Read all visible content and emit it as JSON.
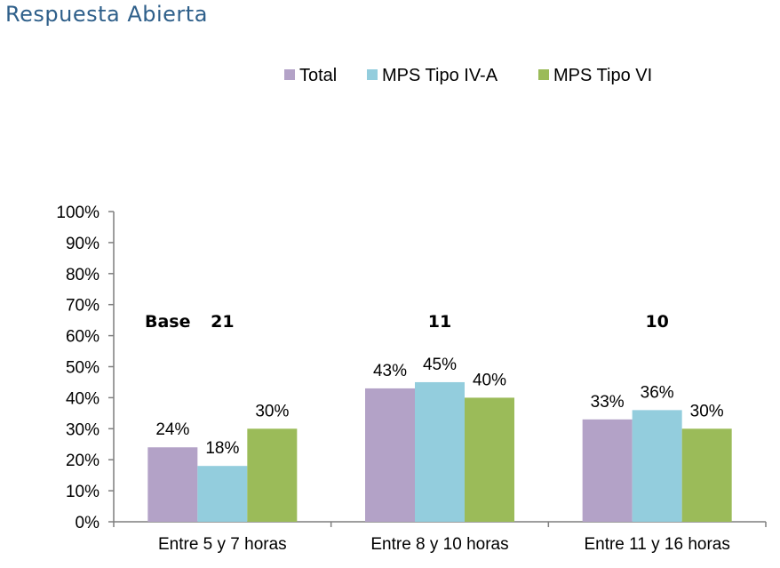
{
  "page_title": "Respuesta Abierta",
  "chart_data": {
    "type": "bar",
    "categories": [
      "Entre 5 y 7 horas",
      "Entre 8 y 10 horas",
      "Entre 11 y 16 horas"
    ],
    "series": [
      {
        "name": "Total",
        "color": "#b3a2c7",
        "values": [
          24,
          43,
          33
        ],
        "labels": [
          "24%",
          "43%",
          "33%"
        ]
      },
      {
        "name": "MPS Tipo IV-A",
        "color": "#93cddd",
        "values": [
          18,
          45,
          36
        ],
        "labels": [
          "18%",
          "45%",
          "36%"
        ]
      },
      {
        "name": "MPS Tipo VI",
        "color": "#9bbb59",
        "values": [
          30,
          40,
          30
        ],
        "labels": [
          "30%",
          "40%",
          "30%"
        ]
      }
    ],
    "yticks": [
      "0%",
      "10%",
      "20%",
      "30%",
      "40%",
      "50%",
      "60%",
      "70%",
      "80%",
      "90%",
      "100%"
    ],
    "ylim": [
      0,
      100
    ],
    "base_label": "Base",
    "base_values": [
      "21",
      "11",
      "10"
    ],
    "legend_position": "top"
  }
}
